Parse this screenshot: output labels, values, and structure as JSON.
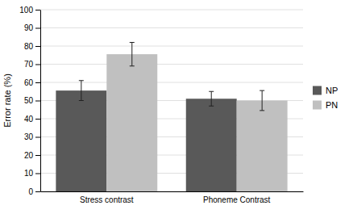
{
  "chart_data": {
    "type": "bar",
    "categories": [
      "Stress contrast",
      "Phoneme Contrast"
    ],
    "series": [
      {
        "name": "NP",
        "color": "#595959",
        "values": [
          55.5,
          51.0
        ],
        "errors": [
          5.5,
          4.0
        ]
      },
      {
        "name": "PN",
        "color": "#c0c0c0",
        "values": [
          75.5,
          50.0
        ],
        "errors": [
          6.5,
          5.5
        ]
      }
    ],
    "ylabel": "Error rate (%)",
    "ylim": [
      0,
      100
    ],
    "yticks": [
      0,
      10,
      20,
      30,
      40,
      50,
      60,
      70,
      80,
      90,
      100
    ],
    "grid": true,
    "legend": "right"
  }
}
